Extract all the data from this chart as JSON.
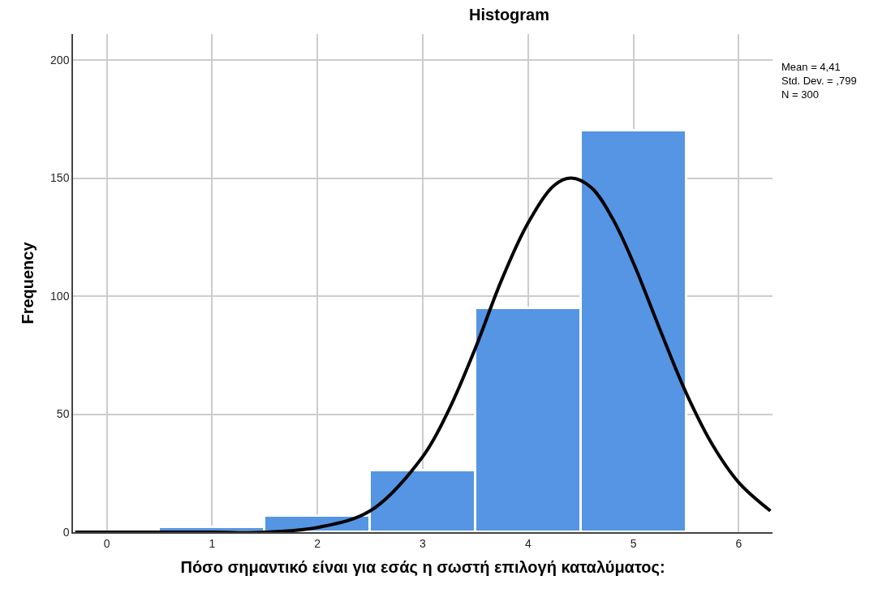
{
  "chart_data": {
    "type": "histogram",
    "title": "Histogram",
    "xlabel": "Πόσο σημαντικό είναι για εσάς η σωστή επιλογή καταλύματος:",
    "ylabel": "Frequency",
    "bins": [
      0.5,
      1.5,
      2.5,
      3.5,
      4.5,
      5.5
    ],
    "values": [
      2,
      7,
      26,
      95,
      170
    ],
    "color": "#5595e3",
    "series": [
      {
        "type": "line",
        "color": "#000000",
        "x": [
          -0.3,
          0,
          0.5,
          1,
          1.5,
          2,
          2.5,
          3,
          3.25,
          3.5,
          3.75,
          4,
          4.25,
          4.41,
          4.6,
          4.8,
          5,
          5.25,
          5.5,
          5.75,
          6,
          6.3
        ],
        "values": [
          0,
          0,
          0,
          0,
          0,
          2,
          9,
          32,
          52,
          78,
          107,
          131,
          147,
          150,
          146,
          133,
          114,
          86,
          59,
          37,
          21,
          9
        ]
      }
    ],
    "annotations": [
      "Mean = 4,41\nStd. Dev. = ,799\nN = 300"
    ],
    "xlim": [
      -0.32,
      6.32
    ],
    "xticks": [
      0,
      1,
      2,
      3,
      4,
      5,
      6
    ],
    "ylim": [
      0,
      211
    ],
    "yticks": [
      0,
      50,
      100,
      150,
      200
    ],
    "grid": true
  }
}
